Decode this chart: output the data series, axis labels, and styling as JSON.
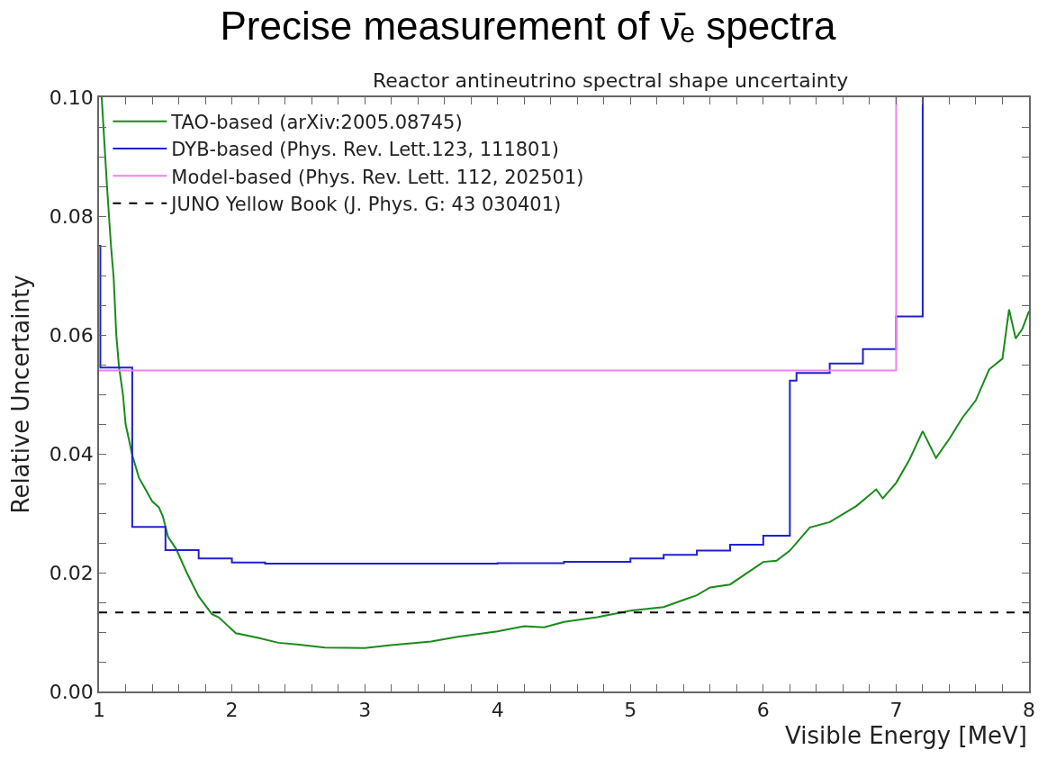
{
  "chart_data": {
    "type": "line",
    "title": "Precise measurement of ν̄ₑ spectra",
    "subtitle": "Reactor antineutrino spectral shape uncertainty",
    "xlabel": "Visible Energy [MeV]",
    "ylabel": "Relative Uncertainty",
    "xlim": [
      1,
      8
    ],
    "ylim": [
      0,
      0.1
    ],
    "xticks": [
      1,
      {
        "value": 1.2,
        "label": null
      },
      {
        "value": 1.4,
        "label": null
      },
      {
        "value": 1.6,
        "label": null
      },
      {
        "value": 1.8,
        "label": null
      },
      2,
      {
        "value": 2.2,
        "label": null
      },
      {
        "value": 2.4,
        "label": null
      },
      {
        "value": 2.6,
        "label": null
      },
      {
        "value": 2.8,
        "label": null
      },
      3,
      {
        "value": 3.2,
        "label": null
      },
      {
        "value": 3.4,
        "label": null
      },
      {
        "value": 3.6,
        "label": null
      },
      {
        "value": 3.8,
        "label": null
      },
      4,
      {
        "value": 4.2,
        "label": null
      },
      {
        "value": 4.4,
        "label": null
      },
      {
        "value": 4.6,
        "label": null
      },
      {
        "value": 4.8,
        "label": null
      },
      5,
      {
        "value": 5.2,
        "label": null
      },
      {
        "value": 5.4,
        "label": null
      },
      {
        "value": 5.6,
        "label": null
      },
      {
        "value": 5.8,
        "label": null
      },
      6,
      {
        "value": 6.2,
        "label": null
      },
      {
        "value": 6.4,
        "label": null
      },
      {
        "value": 6.6,
        "label": null
      },
      {
        "value": 6.8,
        "label": null
      },
      7,
      {
        "value": 7.2,
        "label": null
      },
      {
        "value": 7.4,
        "label": null
      },
      {
        "value": 7.6,
        "label": null
      },
      {
        "value": 7.8,
        "label": null
      },
      8
    ],
    "yticks": [
      {
        "value": 0,
        "label": "0.00"
      },
      {
        "value": 0.005,
        "label": null
      },
      {
        "value": 0.01,
        "label": null
      },
      {
        "value": 0.015,
        "label": null
      },
      {
        "value": 0.02,
        "label": "0.02"
      },
      {
        "value": 0.025,
        "label": null
      },
      {
        "value": 0.03,
        "label": null
      },
      {
        "value": 0.035,
        "label": null
      },
      {
        "value": 0.04,
        "label": "0.04"
      },
      {
        "value": 0.045,
        "label": null
      },
      {
        "value": 0.05,
        "label": null
      },
      {
        "value": 0.055,
        "label": null
      },
      {
        "value": 0.06,
        "label": "0.06"
      },
      {
        "value": 0.065,
        "label": null
      },
      {
        "value": 0.07,
        "label": null
      },
      {
        "value": 0.075,
        "label": null
      },
      {
        "value": 0.08,
        "label": "0.08"
      },
      {
        "value": 0.085,
        "label": null
      },
      {
        "value": 0.09,
        "label": null
      },
      {
        "value": 0.095,
        "label": null
      },
      {
        "value": 0.1,
        "label": "0.10"
      }
    ],
    "legend": "top left",
    "marker": "none",
    "series": [
      {
        "name": "TAO-based (arXiv:2005.08745)",
        "color": "#1a8a1a",
        "line_style": "solid",
        "x": [
          1.02,
          1.06,
          1.09,
          1.11,
          1.13,
          1.15,
          1.18,
          1.2,
          1.25,
          1.3,
          1.35,
          1.4,
          1.45,
          1.48,
          1.52,
          1.58,
          1.66,
          1.75,
          1.85,
          1.9,
          2.03,
          2.2,
          2.35,
          2.49,
          2.7,
          3.0,
          3.2,
          3.5,
          3.7,
          4.0,
          4.2,
          4.35,
          4.5,
          4.75,
          5.0,
          5.25,
          5.5,
          5.6,
          5.75,
          6.0,
          6.1,
          6.2,
          6.35,
          6.5,
          6.7,
          6.85,
          6.9,
          7.0,
          7.1,
          7.2,
          7.3,
          7.4,
          7.5,
          7.6,
          7.7,
          7.8,
          7.85,
          7.9,
          7.95,
          8.0
        ],
        "values": [
          0.1,
          0.085,
          0.075,
          0.0697,
          0.06,
          0.0547,
          0.05,
          0.045,
          0.0398,
          0.036,
          0.034,
          0.032,
          0.031,
          0.0295,
          0.026,
          0.024,
          0.02,
          0.016,
          0.013,
          0.0125,
          0.0098,
          0.009,
          0.0082,
          0.0079,
          0.0074,
          0.0073,
          0.0078,
          0.0084,
          0.0092,
          0.0101,
          0.011,
          0.0108,
          0.0117,
          0.0125,
          0.0136,
          0.0142,
          0.0162,
          0.0175,
          0.018,
          0.0218,
          0.022,
          0.0237,
          0.0276,
          0.0285,
          0.0312,
          0.034,
          0.0325,
          0.0351,
          0.039,
          0.0438,
          0.0393,
          0.0425,
          0.0461,
          0.049,
          0.0542,
          0.056,
          0.0643,
          0.0594,
          0.061,
          0.064
        ]
      },
      {
        "name": "DYB-based (Phys. Rev. Lett.123, 111801)",
        "color": "#2020d0",
        "type": "step",
        "line_style": "solid",
        "x": [
          1.0,
          1.01,
          1.25,
          1.5,
          1.75,
          2.0,
          2.25,
          4.0,
          4.5,
          5.0,
          5.25,
          5.5,
          5.75,
          6.0,
          6.2,
          6.25,
          6.5,
          6.75,
          7.0,
          7.2
        ],
        "values": [
          0.075,
          0.0545,
          0.0277,
          0.0238,
          0.0224,
          0.0217,
          0.0215,
          0.0216,
          0.0218,
          0.0224,
          0.023,
          0.0237,
          0.0247,
          0.0262,
          0.0523,
          0.0536,
          0.0552,
          0.0576,
          0.0631,
          0.1
        ]
      },
      {
        "name": "Model-based (Phys. Rev. Lett. 112, 202501)",
        "color": "#ee82ee",
        "type": "step",
        "line_style": "solid",
        "x": [
          1.0,
          7.0
        ],
        "values": [
          0.054,
          0.1
        ]
      },
      {
        "name": "JUNO Yellow Book (J. Phys. G: 43 030401)",
        "color": "#000000",
        "line_style": "dashed",
        "x": [
          1.0,
          8.0
        ],
        "values": [
          0.0133,
          0.0133
        ]
      }
    ]
  }
}
